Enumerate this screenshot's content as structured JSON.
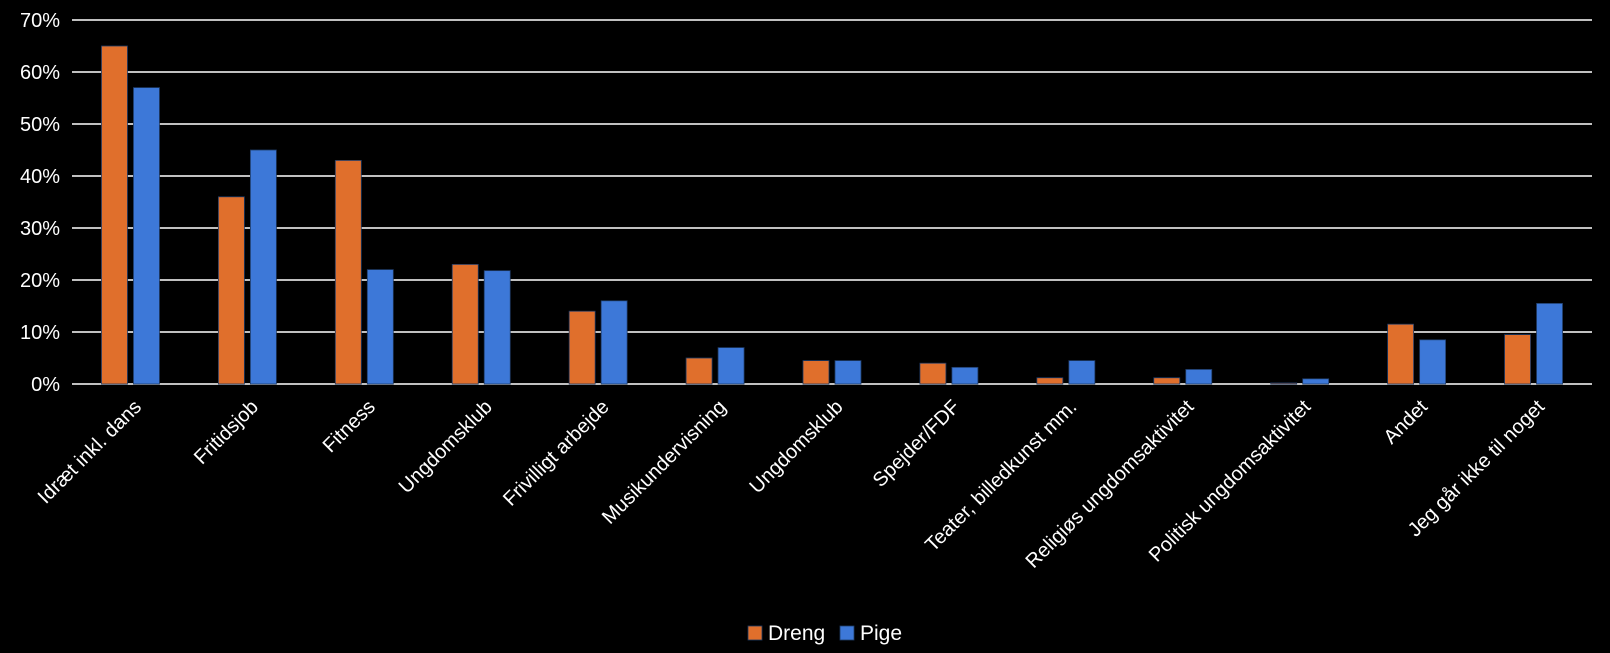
{
  "chart_data": {
    "type": "bar",
    "categories": [
      "Idræt inkl. dans",
      "Fritidsjob",
      "Fitness",
      "Ungdomsklub",
      "Frivilligt arbejde",
      "Musikundervisning",
      "Ungdomsklub",
      "Spejder/FDF",
      "Teater, billedkunst mm.",
      "Religiøs ungdomsaktivitet",
      "Politisk ungdomsaktivitet",
      "Andet",
      "Jeg går ikke til noget"
    ],
    "series": [
      {
        "name": "Dreng",
        "color": "#e06f2c",
        "values": [
          65,
          36,
          43,
          23,
          14,
          5,
          4.5,
          4,
          1.2,
          1.2,
          0.2,
          11.5,
          9.5
        ]
      },
      {
        "name": "Pige",
        "color": "#3d78d8",
        "values": [
          57,
          45,
          22,
          21.8,
          16,
          7,
          4.5,
          3.2,
          4.5,
          2.8,
          1,
          8.5,
          15.5
        ]
      }
    ],
    "yticks": [
      "0%",
      "10%",
      "20%",
      "30%",
      "40%",
      "50%",
      "60%",
      "70%"
    ],
    "ylim": [
      0,
      70
    ],
    "grid": true,
    "legend_position": "bottom"
  }
}
